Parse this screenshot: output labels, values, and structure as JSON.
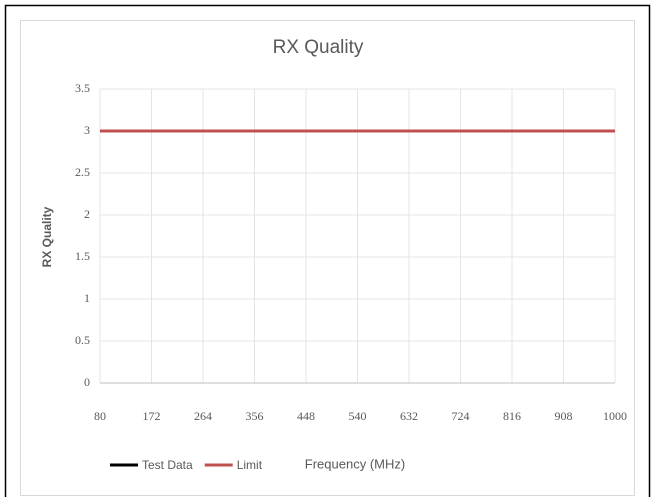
{
  "chart_data": {
    "type": "line",
    "title": "RX Quality",
    "x_label": "Frequency (MHz)",
    "y_label": "RX Quality",
    "x": [
      80,
      1000
    ],
    "series": [
      {
        "name": "Test Data",
        "color": "#000000",
        "values": [
          null,
          null
        ]
      },
      {
        "name": "Limit",
        "color": "#c0504d",
        "values": [
          3,
          3
        ]
      }
    ],
    "xlim": [
      80,
      1000
    ],
    "xticks": [
      80,
      172,
      264,
      356,
      448,
      540,
      632,
      724,
      816,
      908,
      1000
    ],
    "ylim": [
      0,
      3.5
    ],
    "yticks": [
      0,
      0.5,
      1,
      1.5,
      2,
      2.5,
      3,
      3.5
    ],
    "grid": true,
    "legend": "bottom"
  }
}
